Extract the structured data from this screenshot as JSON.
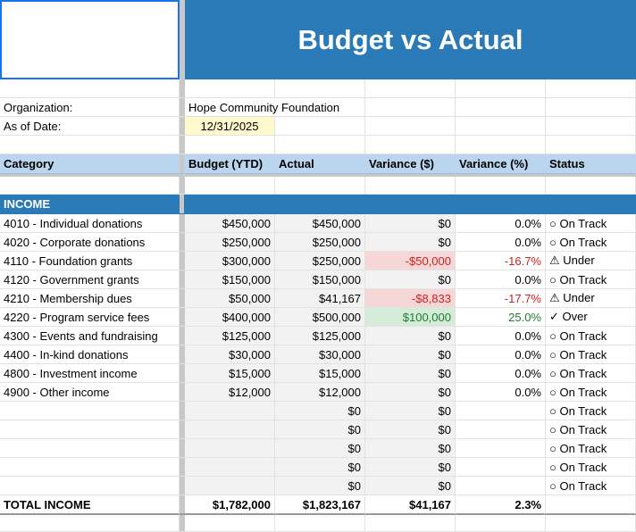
{
  "title": "Budget vs Actual",
  "info": {
    "org_label": "Organization:",
    "org_value": "Hope Community Foundation",
    "date_label": "As of Date:",
    "date_value": "12/31/2025"
  },
  "headers": {
    "category": "Category",
    "budget": "Budget (YTD)",
    "actual": "Actual",
    "variance_dollar": "Variance ($)",
    "variance_pct": "Variance (%)",
    "status": "Status"
  },
  "section_label": "INCOME",
  "rows": [
    {
      "category": "4010 - Individual donations",
      "budget": "$450,000",
      "actual": "$450,000",
      "var": "$0",
      "pct": "0.0%",
      "status": "○ On Track",
      "tone": "neutral"
    },
    {
      "category": "4020 - Corporate donations",
      "budget": "$250,000",
      "actual": "$250,000",
      "var": "$0",
      "pct": "0.0%",
      "status": "○ On Track",
      "tone": "neutral"
    },
    {
      "category": "4110 - Foundation grants",
      "budget": "$300,000",
      "actual": "$250,000",
      "var": "-$50,000",
      "pct": "-16.7%",
      "status": "⚠ Under",
      "tone": "under"
    },
    {
      "category": "4120 - Government grants",
      "budget": "$150,000",
      "actual": "$150,000",
      "var": "$0",
      "pct": "0.0%",
      "status": "○ On Track",
      "tone": "neutral"
    },
    {
      "category": "4210 - Membership dues",
      "budget": "$50,000",
      "actual": "$41,167",
      "var": "-$8,833",
      "pct": "-17.7%",
      "status": "⚠ Under",
      "tone": "under"
    },
    {
      "category": "4220 - Program service fees",
      "budget": "$400,000",
      "actual": "$500,000",
      "var": "$100,000",
      "pct": "25.0%",
      "status": "✓ Over",
      "tone": "over"
    },
    {
      "category": "4300 - Events and fundraising",
      "budget": "$125,000",
      "actual": "$125,000",
      "var": "$0",
      "pct": "0.0%",
      "status": "○ On Track",
      "tone": "neutral"
    },
    {
      "category": "4400 - In-kind donations",
      "budget": "$30,000",
      "actual": "$30,000",
      "var": "$0",
      "pct": "0.0%",
      "status": "○ On Track",
      "tone": "neutral"
    },
    {
      "category": "4800 - Investment income",
      "budget": "$15,000",
      "actual": "$15,000",
      "var": "$0",
      "pct": "0.0%",
      "status": "○ On Track",
      "tone": "neutral"
    },
    {
      "category": "4900 - Other income",
      "budget": "$12,000",
      "actual": "$12,000",
      "var": "$0",
      "pct": "0.0%",
      "status": "○ On Track",
      "tone": "neutral"
    },
    {
      "category": "",
      "budget": "",
      "actual": "$0",
      "var": "$0",
      "pct": "",
      "status": "○ On Track",
      "tone": "neutral"
    },
    {
      "category": "",
      "budget": "",
      "actual": "$0",
      "var": "$0",
      "pct": "",
      "status": "○ On Track",
      "tone": "neutral"
    },
    {
      "category": "",
      "budget": "",
      "actual": "$0",
      "var": "$0",
      "pct": "",
      "status": "○ On Track",
      "tone": "neutral"
    },
    {
      "category": "",
      "budget": "",
      "actual": "$0",
      "var": "$0",
      "pct": "",
      "status": "○ On Track",
      "tone": "neutral"
    },
    {
      "category": "",
      "budget": "",
      "actual": "$0",
      "var": "$0",
      "pct": "",
      "status": "○ On Track",
      "tone": "neutral"
    }
  ],
  "total": {
    "label": "TOTAL INCOME",
    "budget": "$1,782,000",
    "actual": "$1,823,167",
    "var": "$41,167",
    "pct": "2.3%"
  },
  "colors": {
    "title_band": "#2a7ab8",
    "header_band": "#b9d6ee",
    "date_highlight": "#fff9cc",
    "under_fill": "#f6d7d7",
    "under_text": "#cc2222",
    "over_fill": "#d5ecd8",
    "over_text": "#1e7a34"
  }
}
